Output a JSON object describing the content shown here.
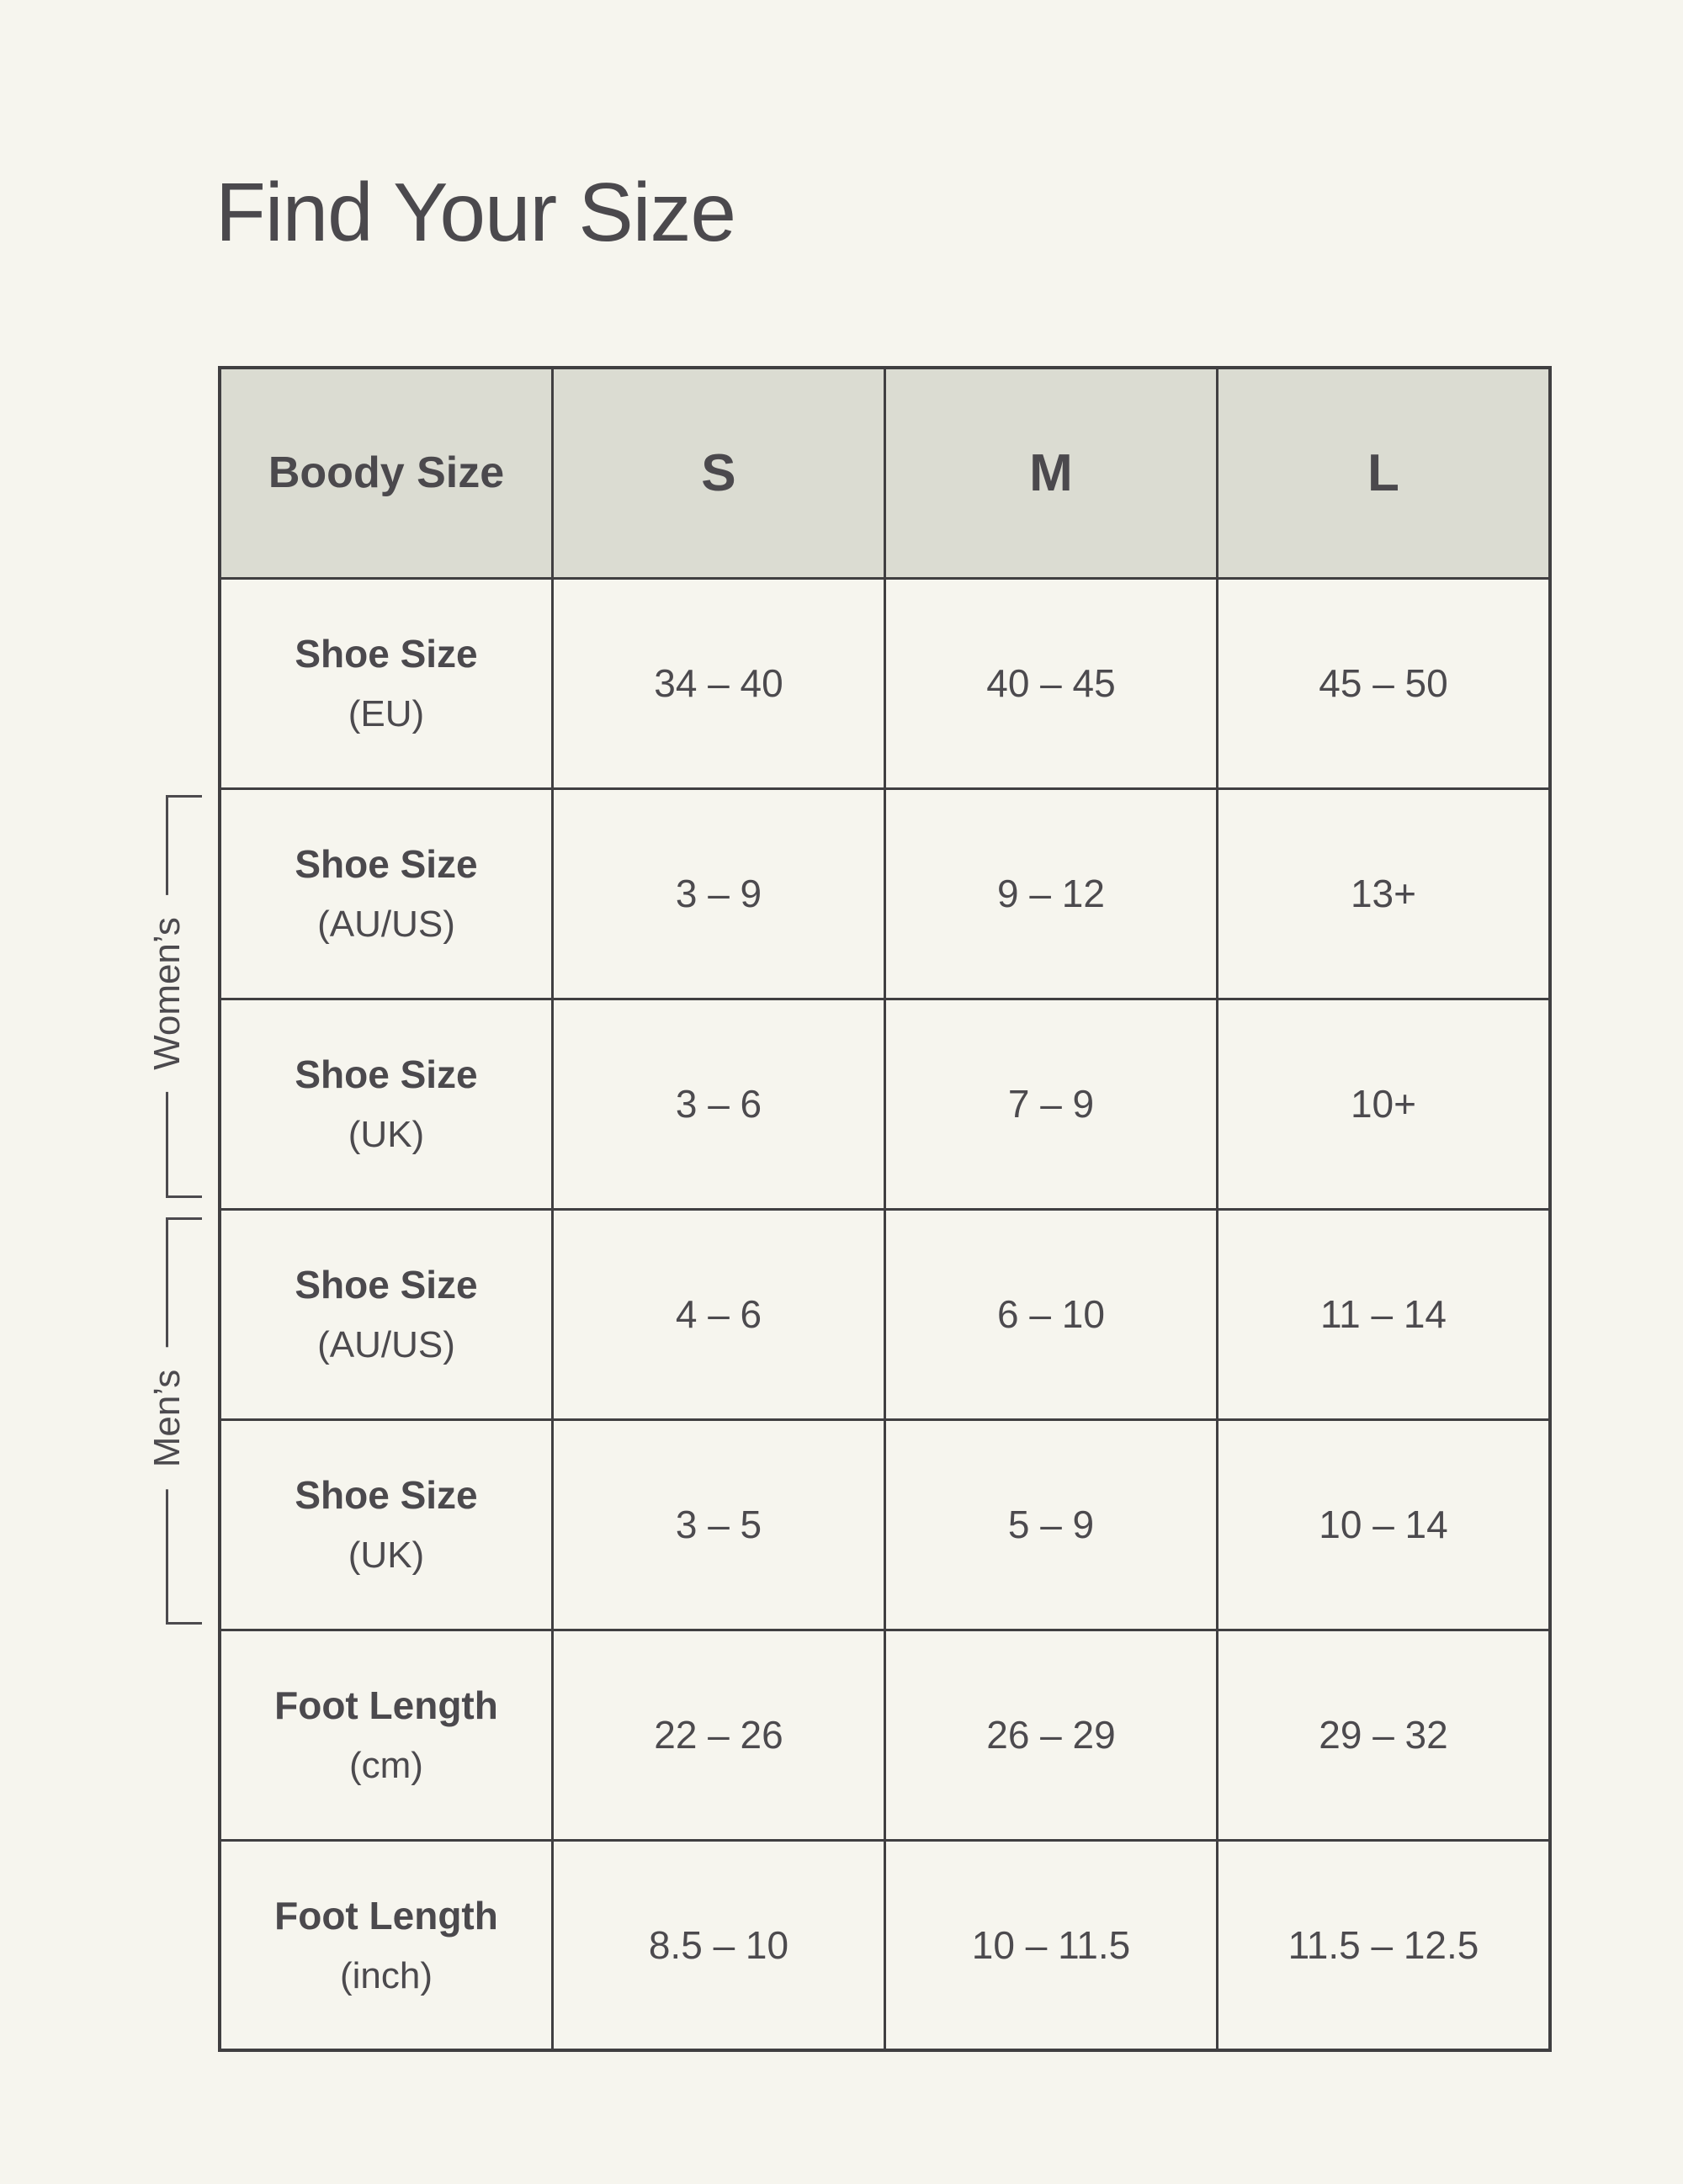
{
  "page": {
    "title": "Find Your Size"
  },
  "colors": {
    "page_background": "#f6f5ee",
    "header_background": "#dbdcd2",
    "border": "#403f41",
    "text": "#4c4a4e"
  },
  "table": {
    "header": {
      "label": "Boody Size",
      "sizes": [
        "S",
        "M",
        "L"
      ]
    },
    "rows": [
      {
        "name": "Shoe Size",
        "unit": "(EU)",
        "values": [
          "34 – 40",
          "40 – 45",
          "45 – 50"
        ]
      },
      {
        "name": "Shoe Size",
        "unit": "(AU/US)",
        "values": [
          "3 – 9",
          "9 – 12",
          "13+"
        ]
      },
      {
        "name": "Shoe Size",
        "unit": "(UK)",
        "values": [
          "3 – 6",
          "7 – 9",
          "10+"
        ]
      },
      {
        "name": "Shoe Size",
        "unit": "(AU/US)",
        "values": [
          "4 – 6",
          "6 – 10",
          "11 – 14"
        ]
      },
      {
        "name": "Shoe Size",
        "unit": "(UK)",
        "values": [
          "3 – 5",
          "5 – 9",
          "10 – 14"
        ]
      },
      {
        "name": "Foot Length",
        "unit": "(cm)",
        "values": [
          "22 – 26",
          "26 – 29",
          "29 – 32"
        ]
      },
      {
        "name": "Foot Length",
        "unit": "(inch)",
        "values": [
          "8.5 – 10",
          "10 – 11.5",
          "11.5 – 12.5"
        ]
      }
    ],
    "groups": [
      {
        "label": "Women’s"
      },
      {
        "label": "Men’s"
      }
    ]
  }
}
